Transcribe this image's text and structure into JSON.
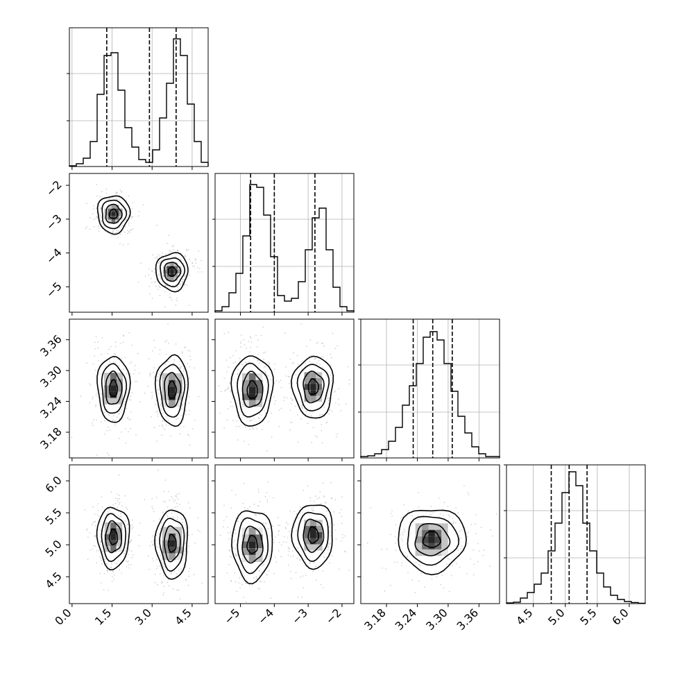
{
  "chart_data": {
    "type": "corner",
    "grid": true,
    "n_params": 4,
    "params": [
      {
        "range": [
          -0.1,
          5.1
        ],
        "ticks": [
          0.0,
          1.5,
          3.0,
          4.5
        ],
        "tick_labels": [
          "0.0",
          "1.5",
          "3.0",
          "4.5"
        ]
      },
      {
        "range": [
          -5.75,
          -1.65
        ],
        "ticks": [
          -5,
          -4,
          -3,
          -2
        ],
        "tick_labels": [
          "−5",
          "−4",
          "−3",
          "−2"
        ]
      },
      {
        "range": [
          3.13,
          3.4
        ],
        "ticks": [
          3.18,
          3.24,
          3.3,
          3.36
        ],
        "tick_labels": [
          "3.18",
          "3.24",
          "3.30",
          "3.36"
        ]
      },
      {
        "range": [
          4.08,
          6.25
        ],
        "ticks": [
          4.5,
          5.0,
          5.5,
          6.0
        ],
        "tick_labels": [
          "4.5",
          "5.0",
          "5.5",
          "6.0"
        ]
      }
    ],
    "histograms": [
      {
        "param": 0,
        "bins": [
          -0.1,
          0.16,
          0.42,
          0.68,
          0.94,
          1.2,
          1.46,
          1.72,
          1.98,
          2.24,
          2.5,
          2.76,
          3.02,
          3.28,
          3.54,
          3.8,
          4.06,
          4.32,
          4.58,
          4.84,
          5.1
        ],
        "counts": [
          0.5,
          2,
          6,
          18,
          52,
          80,
          82,
          55,
          28,
          14,
          5,
          3,
          12,
          35,
          60,
          92,
          80,
          45,
          18,
          3
        ],
        "ymax": 100,
        "y_gridlines": [
          33,
          67
        ],
        "quantiles": [
          1.3,
          2.9,
          3.9
        ]
      },
      {
        "param": 1,
        "bins": [
          -5.75,
          -5.545,
          -5.34,
          -5.135,
          -4.93,
          -4.725,
          -4.52,
          -4.315,
          -4.11,
          -3.905,
          -3.7,
          -3.495,
          -3.29,
          -3.085,
          -2.88,
          -2.675,
          -2.47,
          -2.265,
          -2.06,
          -1.855,
          -1.65
        ],
        "counts": [
          1,
          4,
          14,
          28,
          55,
          92,
          90,
          70,
          40,
          12,
          8,
          10,
          22,
          45,
          68,
          75,
          45,
          18,
          4,
          1
        ],
        "ymax": 100,
        "y_gridlines": [
          33,
          67
        ],
        "quantiles": [
          -4.7,
          -4.0,
          -2.8
        ]
      },
      {
        "param": 2,
        "bins": [
          3.13,
          3.1435,
          3.157,
          3.1705,
          3.184,
          3.1975,
          3.211,
          3.2245,
          3.238,
          3.2515,
          3.265,
          3.2785,
          3.292,
          3.3055,
          3.319,
          3.3325,
          3.346,
          3.3595,
          3.373,
          3.3865,
          3.4
        ],
        "counts": [
          1,
          1.5,
          3,
          6,
          12,
          22,
          38,
          52,
          68,
          87,
          91,
          85,
          68,
          48,
          30,
          18,
          8,
          3,
          1,
          1
        ],
        "ymax": 100,
        "y_gridlines": [
          33,
          67,
          100
        ],
        "quantiles": [
          3.232,
          3.27,
          3.308
        ]
      },
      {
        "param": 3,
        "bins": [
          4.08,
          4.1885,
          4.297,
          4.4055,
          4.514,
          4.6225,
          4.731,
          4.8395,
          4.948,
          5.0565,
          5.165,
          5.2735,
          5.382,
          5.4905,
          5.599,
          5.7075,
          5.816,
          5.9245,
          6.033,
          6.1415,
          6.25
        ],
        "counts": [
          0.5,
          1,
          4,
          8,
          14,
          22,
          38,
          58,
          80,
          95,
          85,
          58,
          38,
          22,
          12,
          6,
          3,
          1.5,
          0.8,
          0.3
        ],
        "ymax": 100,
        "y_gridlines": [
          33,
          67,
          100
        ],
        "quantiles": [
          4.78,
          5.06,
          5.34
        ]
      }
    ],
    "scatter_panels": [
      {
        "x": 0,
        "y": 1,
        "clusters": [
          {
            "mean": [
              1.55,
              -2.85
            ],
            "sd": [
              0.3,
              0.28
            ]
          },
          {
            "mean": [
              3.75,
              -4.55
            ],
            "sd": [
              0.3,
              0.28
            ]
          }
        ]
      },
      {
        "x": 0,
        "y": 2,
        "clusters": [
          {
            "mean": [
              1.55,
              3.265
            ],
            "sd": [
              0.3,
              0.032
            ]
          },
          {
            "mean": [
              3.75,
              3.262
            ],
            "sd": [
              0.3,
              0.034
            ]
          }
        ]
      },
      {
        "x": 1,
        "y": 2,
        "clusters": [
          {
            "mean": [
              -4.65,
              3.262
            ],
            "sd": [
              0.3,
              0.034
            ]
          },
          {
            "mean": [
              -2.85,
              3.268
            ],
            "sd": [
              0.3,
              0.03
            ]
          }
        ]
      },
      {
        "x": 0,
        "y": 3,
        "clusters": [
          {
            "mean": [
              1.55,
              5.12
            ],
            "sd": [
              0.3,
              0.24
            ]
          },
          {
            "mean": [
              3.75,
              5.02
            ],
            "sd": [
              0.3,
              0.27
            ]
          }
        ]
      },
      {
        "x": 1,
        "y": 3,
        "clusters": [
          {
            "mean": [
              -4.65,
              5.0
            ],
            "sd": [
              0.3,
              0.28
            ]
          },
          {
            "mean": [
              -2.85,
              5.15
            ],
            "sd": [
              0.3,
              0.25
            ]
          }
        ]
      },
      {
        "x": 2,
        "y": 3,
        "clusters": [
          {
            "mean": [
              3.268,
              5.08
            ],
            "sd": [
              0.033,
              0.25
            ]
          }
        ]
      }
    ],
    "contour_levels_sigma": [
      0.5,
      1.0,
      1.5,
      2.0
    ]
  }
}
